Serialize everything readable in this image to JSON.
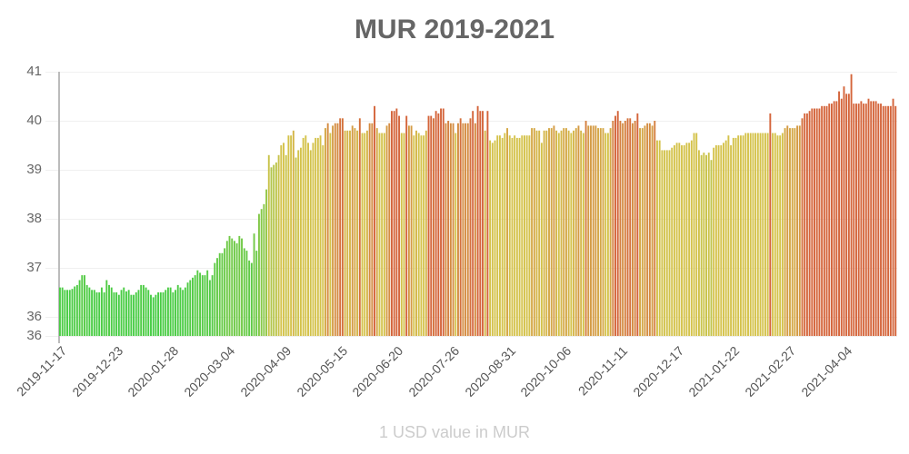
{
  "title": "MUR 2019-2021",
  "x_axis_label": "1 USD value in MUR",
  "y_ticks": [
    {
      "label": "41",
      "value": 41
    },
    {
      "label": "40",
      "value": 40
    },
    {
      "label": "39",
      "value": 39
    },
    {
      "label": "38",
      "value": 38
    },
    {
      "label": "37",
      "value": 37
    },
    {
      "label": "36",
      "value": 36
    },
    {
      "label": "36",
      "value": 35.61
    }
  ],
  "x_ticks": [
    "2019-11-17",
    "2019-12-23",
    "2020-01-28",
    "2020-03-04",
    "2020-04-09",
    "2020-05-15",
    "2020-06-20",
    "2020-07-26",
    "2020-08-31",
    "2020-10-06",
    "2020-11-11",
    "2020-12-17",
    "2021-01-22",
    "2021-02-27",
    "2021-04-04"
  ],
  "colors": {
    "low": "#44cc44",
    "mid": "#d4c24a",
    "high": "#d4643a",
    "title": "#666666",
    "axis_label": "#cccccc"
  },
  "chart_data": {
    "type": "bar",
    "title": "MUR 2019-2021",
    "xlabel": "1 USD value in MUR",
    "ylabel": "",
    "ylim": [
      35.61,
      41
    ],
    "grid": true,
    "legend": "none",
    "x_start": "2019-11-17",
    "x_end": "2021-04-30",
    "categories": [
      "2019-11-17",
      "2019-12-23",
      "2020-01-28",
      "2020-03-04",
      "2020-04-09",
      "2020-05-15",
      "2020-06-20",
      "2020-07-26",
      "2020-08-31",
      "2020-10-06",
      "2020-11-11",
      "2020-12-17",
      "2021-01-22",
      "2021-02-27",
      "2021-04-04"
    ],
    "values": [
      36.6,
      36.6,
      36.55,
      36.55,
      36.55,
      36.57,
      36.62,
      36.65,
      36.75,
      36.85,
      36.85,
      36.65,
      36.6,
      36.55,
      36.55,
      36.5,
      36.5,
      36.6,
      36.5,
      36.75,
      36.65,
      36.6,
      36.5,
      36.5,
      36.45,
      36.55,
      36.6,
      36.52,
      36.55,
      36.45,
      36.45,
      36.5,
      36.55,
      36.65,
      36.65,
      36.6,
      36.55,
      36.45,
      36.4,
      36.45,
      36.5,
      36.5,
      36.5,
      36.55,
      36.6,
      36.6,
      36.5,
      36.55,
      36.65,
      36.6,
      36.55,
      36.6,
      36.7,
      36.75,
      36.8,
      36.85,
      36.95,
      36.9,
      36.85,
      36.85,
      36.95,
      36.75,
      36.85,
      37.1,
      37.2,
      37.3,
      37.3,
      37.4,
      37.55,
      37.65,
      37.6,
      37.55,
      37.5,
      37.65,
      37.6,
      37.4,
      37.35,
      37.15,
      37.1,
      37.7,
      37.35,
      38.1,
      38.2,
      38.3,
      38.6,
      39.3,
      39.05,
      39.1,
      39.15,
      39.3,
      39.5,
      39.55,
      39.3,
      39.7,
      39.7,
      39.8,
      39.25,
      39.4,
      39.45,
      39.65,
      39.7,
      39.55,
      39.4,
      39.55,
      39.65,
      39.65,
      39.7,
      39.5,
      39.85,
      39.95,
      39.75,
      39.9,
      39.95,
      39.95,
      40.05,
      40.05,
      39.8,
      39.8,
      39.8,
      39.9,
      39.85,
      39.8,
      40.05,
      39.75,
      39.75,
      39.8,
      39.95,
      39.95,
      40.3,
      39.85,
      39.75,
      39.75,
      39.75,
      39.9,
      39.95,
      40.2,
      40.2,
      40.25,
      40.1,
      39.75,
      39.75,
      40.1,
      39.9,
      39.9,
      39.7,
      39.8,
      39.75,
      39.7,
      39.7,
      39.8,
      40.1,
      40.1,
      40.05,
      40.2,
      40.15,
      40.25,
      40.25,
      39.95,
      40.0,
      39.95,
      39.95,
      39.75,
      39.95,
      40.05,
      39.95,
      39.95,
      39.95,
      40.05,
      40.2,
      39.95,
      40.3,
      40.2,
      40.2,
      39.8,
      40.2,
      39.6,
      39.55,
      39.6,
      39.7,
      39.7,
      39.65,
      39.75,
      39.85,
      39.7,
      39.65,
      39.7,
      39.65,
      39.65,
      39.7,
      39.7,
      39.7,
      39.7,
      39.85,
      39.85,
      39.8,
      39.8,
      39.55,
      39.8,
      39.8,
      39.85,
      39.85,
      39.9,
      39.8,
      39.75,
      39.8,
      39.85,
      39.85,
      39.8,
      39.75,
      39.8,
      39.85,
      39.9,
      39.8,
      39.75,
      40.0,
      39.9,
      39.9,
      39.9,
      39.9,
      39.85,
      39.85,
      39.85,
      39.75,
      39.75,
      39.85,
      40.0,
      40.1,
      40.2,
      40.0,
      39.95,
      40.0,
      40.05,
      40.05,
      39.95,
      40.0,
      40.15,
      39.85,
      39.85,
      39.9,
      39.95,
      39.95,
      39.9,
      40.0,
      39.6,
      39.6,
      39.4,
      39.4,
      39.4,
      39.4,
      39.45,
      39.5,
      39.55,
      39.55,
      39.5,
      39.5,
      39.55,
      39.55,
      39.6,
      39.75,
      39.75,
      39.4,
      39.3,
      39.35,
      39.3,
      39.35,
      39.2,
      39.45,
      39.5,
      39.5,
      39.5,
      39.55,
      39.6,
      39.7,
      39.5,
      39.65,
      39.65,
      39.7,
      39.7,
      39.7,
      39.75,
      39.75,
      39.75,
      39.75,
      39.75,
      39.75,
      39.75,
      39.75,
      39.75,
      39.75,
      40.15,
      39.75,
      39.75,
      39.7,
      39.7,
      39.75,
      39.85,
      39.9,
      39.85,
      39.85,
      39.85,
      39.9,
      39.9,
      40.05,
      40.15,
      40.15,
      40.2,
      40.25,
      40.25,
      40.25,
      40.25,
      40.3,
      40.3,
      40.3,
      40.35,
      40.35,
      40.4,
      40.4,
      40.6,
      40.45,
      40.7,
      40.55,
      40.55,
      40.95,
      40.35,
      40.35,
      40.35,
      40.4,
      40.35,
      40.35,
      40.45,
      40.4,
      40.4,
      40.4,
      40.35,
      40.35,
      40.3,
      40.3,
      40.3,
      40.3,
      40.45,
      40.3
    ]
  }
}
